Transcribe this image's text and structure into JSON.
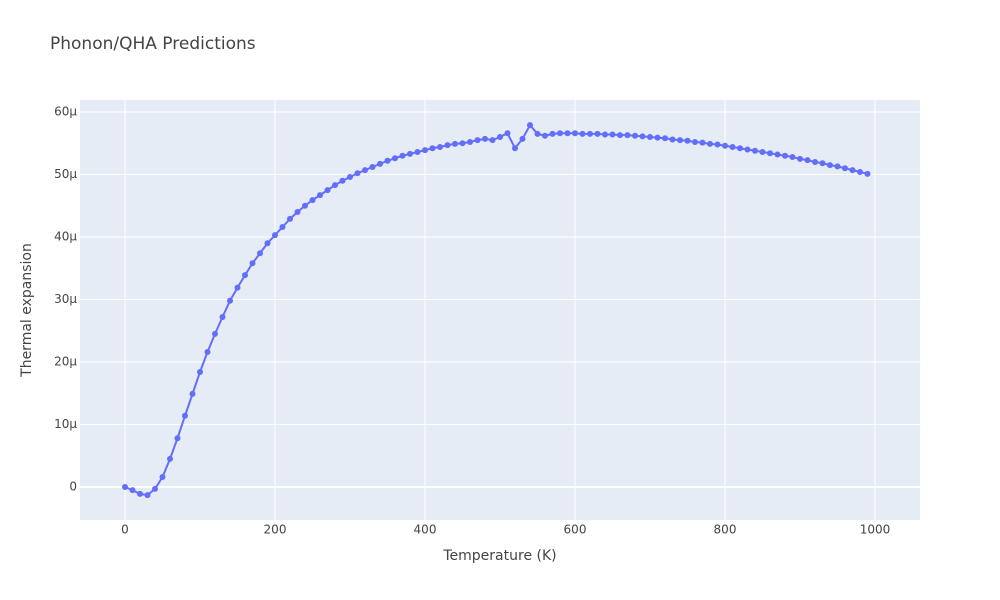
{
  "chart_data": {
    "type": "line",
    "title": "Phonon/QHA Predictions",
    "x_label": "Temperature (K)",
    "y_label": "Thermal expansion",
    "x": [
      0,
      10,
      20,
      30,
      40,
      50,
      60,
      70,
      80,
      90,
      100,
      110,
      120,
      130,
      140,
      150,
      160,
      170,
      180,
      190,
      200,
      210,
      220,
      230,
      240,
      250,
      260,
      270,
      280,
      290,
      300,
      310,
      320,
      330,
      340,
      350,
      360,
      370,
      380,
      390,
      400,
      410,
      420,
      430,
      440,
      450,
      460,
      470,
      480,
      490,
      500,
      510,
      520,
      530,
      540,
      550,
      560,
      570,
      580,
      590,
      600,
      610,
      620,
      630,
      640,
      650,
      660,
      670,
      680,
      690,
      700,
      710,
      720,
      730,
      740,
      750,
      760,
      770,
      780,
      790,
      800,
      810,
      820,
      830,
      840,
      850,
      860,
      870,
      880,
      890,
      900,
      910,
      920,
      930,
      940,
      950,
      960,
      970,
      980,
      990
    ],
    "series": [
      {
        "color": "#636efa",
        "values": [
          0,
          -0.5,
          -1.1,
          -1.3,
          -0.3,
          1.6,
          4.5,
          7.8,
          11.4,
          14.9,
          18.4,
          21.6,
          24.5,
          27.2,
          29.8,
          31.9,
          33.9,
          35.8,
          37.4,
          39.0,
          40.3,
          41.6,
          42.9,
          44.0,
          45.0,
          45.9,
          46.7,
          47.5,
          48.3,
          49.0,
          49.6,
          50.2,
          50.7,
          51.2,
          51.7,
          52.2,
          52.6,
          53.0,
          53.3,
          53.6,
          53.9,
          54.2,
          54.4,
          54.7,
          54.9,
          55.0,
          55.2,
          55.5,
          55.7,
          55.5,
          56.0,
          56.6,
          54.2,
          55.7,
          57.9,
          56.5,
          56.2,
          56.5,
          56.6,
          56.6,
          56.6,
          56.5,
          56.5,
          56.5,
          56.4,
          56.4,
          56.3,
          56.3,
          56.2,
          56.1,
          56.0,
          55.9,
          55.8,
          55.6,
          55.5,
          55.4,
          55.2,
          55.1,
          54.9,
          54.8,
          54.6,
          54.4,
          54.2,
          54.0,
          53.8,
          53.6,
          53.4,
          53.2,
          53.0,
          52.8,
          52.5,
          52.3,
          52.0,
          51.8,
          51.5,
          51.3,
          51.0,
          50.7,
          50.4,
          50.1
        ]
      }
    ],
    "xlim": [
      -60,
      1060
    ],
    "xticks": [
      0,
      200,
      400,
      600,
      800,
      1000
    ],
    "ylim": [
      -5.28,
      61.92
    ],
    "yticks": [
      0,
      {
        "value": 10,
        "label": "10µ"
      },
      {
        "value": 20,
        "label": "20µ"
      },
      {
        "value": 30,
        "label": "30µ"
      },
      {
        "value": 40,
        "label": "40µ"
      },
      {
        "value": 50,
        "label": "50µ"
      },
      {
        "value": 60,
        "label": "60µ"
      }
    ],
    "grid": true
  }
}
